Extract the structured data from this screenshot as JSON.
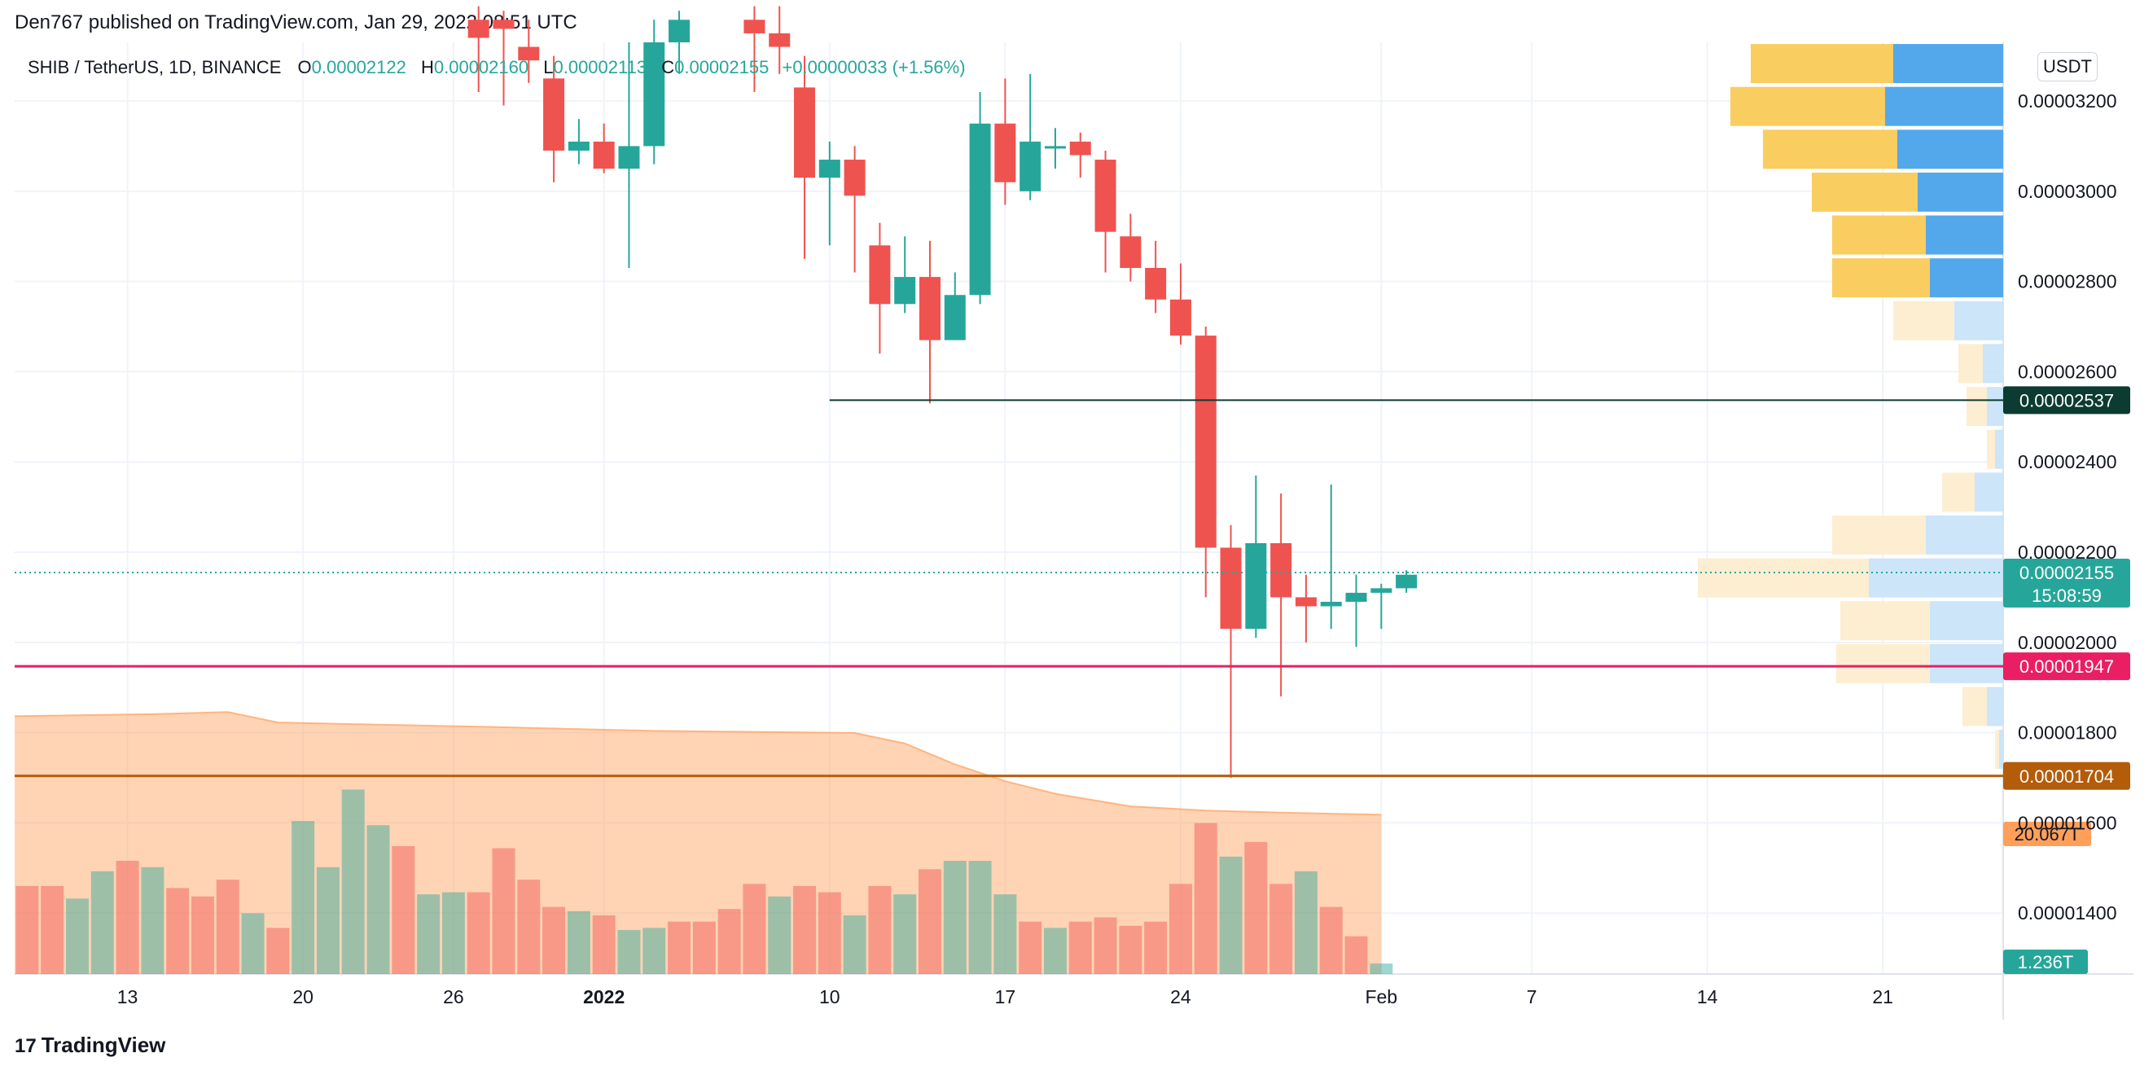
{
  "header": {
    "publisher": "Den767 published on TradingView.com, Jan 29, 2022 08:51 UTC"
  },
  "legend": {
    "symbol": "SHIB / TetherUS, 1D, BINANCE",
    "o_label": "O",
    "o_value": "0.00002122",
    "h_label": "H",
    "h_value": "0.00002160",
    "l_label": "L",
    "l_value": "0.00002113",
    "c_label": "C",
    "c_value": "0.00002155",
    "change": "+0.00000033 (+1.56%)"
  },
  "currency": "USDT",
  "footer": {
    "brand": "TradingView"
  },
  "colors": {
    "up": "#26a69a",
    "down": "#ef5350",
    "hline_dark": "#0c3b31",
    "hline_pink": "#e91e63",
    "hline_brown": "#b35c0a",
    "volume_ma": "#ff9f5a"
  },
  "chart_data": {
    "type": "candlestick",
    "title": "SHIB / TetherUS, 1D, BINANCE",
    "y_ticks": [
      "0.00003200",
      "0.00003000",
      "0.00002800",
      "0.00002600",
      "0.00002400",
      "0.00002200",
      "0.00002000",
      "0.00001800",
      "0.00001600",
      "0.00001400"
    ],
    "y_tick_values": [
      3.2e-05,
      3e-05,
      2.8e-05,
      2.6e-05,
      2.4e-05,
      2.2e-05,
      2e-05,
      1.8e-05,
      1.6e-05,
      1.4e-05
    ],
    "ylim": [
      1.265e-05,
      3.33e-05
    ],
    "x_ticks": [
      {
        "label": "13",
        "day": 0
      },
      {
        "label": "20",
        "day": 7
      },
      {
        "label": "26",
        "day": 13
      },
      {
        "label": "2022",
        "day": 19
      },
      {
        "label": "10",
        "day": 28
      },
      {
        "label": "17",
        "day": 35
      },
      {
        "label": "24",
        "day": 42
      },
      {
        "label": "Feb",
        "day": 50
      },
      {
        "label": "7",
        "day": 56
      },
      {
        "label": "14",
        "day": 63
      },
      {
        "label": "21",
        "day": 70
      }
    ],
    "x_start_day": -4.5,
    "x_end_day": 74.8,
    "candles": [
      {
        "day": 14,
        "o": 3.38e-05,
        "h": 3.41e-05,
        "l": 3.22e-05,
        "c": 3.34e-05
      },
      {
        "day": 15,
        "o": 3.38e-05,
        "h": 3.4e-05,
        "l": 3.19e-05,
        "c": 3.36e-05
      },
      {
        "day": 16,
        "o": 3.32e-05,
        "h": 3.38e-05,
        "l": 3.24e-05,
        "c": 3.29e-05
      },
      {
        "day": 17,
        "o": 3.25e-05,
        "h": 3.3e-05,
        "l": 3.02e-05,
        "c": 3.09e-05
      },
      {
        "day": 18,
        "o": 3.09e-05,
        "h": 3.16e-05,
        "l": 3.06e-05,
        "c": 3.11e-05
      },
      {
        "day": 19,
        "o": 3.11e-05,
        "h": 3.15e-05,
        "l": 3.04e-05,
        "c": 3.05e-05
      },
      {
        "day": 20,
        "o": 3.05e-05,
        "h": 3.33e-05,
        "l": 2.83e-05,
        "c": 3.1e-05
      },
      {
        "day": 21,
        "o": 3.1e-05,
        "h": 3.38e-05,
        "l": 3.06e-05,
        "c": 3.33e-05
      },
      {
        "day": 22,
        "o": 3.33e-05,
        "h": 3.4e-05,
        "l": 3.26e-05,
        "c": 3.38e-05
      },
      {
        "day": 25,
        "o": 3.38e-05,
        "h": 3.41e-05,
        "l": 3.22e-05,
        "c": 3.35e-05
      },
      {
        "day": 26,
        "o": 3.35e-05,
        "h": 3.41e-05,
        "l": 3.26e-05,
        "c": 3.32e-05
      },
      {
        "day": 27,
        "o": 3.23e-05,
        "h": 3.3e-05,
        "l": 2.85e-05,
        "c": 3.03e-05
      },
      {
        "day": 28,
        "o": 3.03e-05,
        "h": 3.11e-05,
        "l": 2.88e-05,
        "c": 3.07e-05
      },
      {
        "day": 29,
        "o": 3.07e-05,
        "h": 3.1e-05,
        "l": 2.82e-05,
        "c": 2.99e-05
      },
      {
        "day": 30,
        "o": 2.88e-05,
        "h": 2.93e-05,
        "l": 2.64e-05,
        "c": 2.75e-05
      },
      {
        "day": 31,
        "o": 2.75e-05,
        "h": 2.9e-05,
        "l": 2.73e-05,
        "c": 2.81e-05
      },
      {
        "day": 32,
        "o": 2.81e-05,
        "h": 2.89e-05,
        "l": 2.53e-05,
        "c": 2.67e-05
      },
      {
        "day": 33,
        "o": 2.67e-05,
        "h": 2.82e-05,
        "l": 2.67e-05,
        "c": 2.77e-05
      },
      {
        "day": 34,
        "o": 2.77e-05,
        "h": 3.22e-05,
        "l": 2.75e-05,
        "c": 3.15e-05
      },
      {
        "day": 35,
        "o": 3.15e-05,
        "h": 3.25e-05,
        "l": 2.97e-05,
        "c": 3.02e-05
      },
      {
        "day": 36,
        "o": 3e-05,
        "h": 3.26e-05,
        "l": 2.98e-05,
        "c": 3.11e-05
      },
      {
        "day": 37,
        "o": 3.1e-05,
        "h": 3.14e-05,
        "l": 3.05e-05,
        "c": 3.1e-05
      },
      {
        "day": 38,
        "o": 3.11e-05,
        "h": 3.13e-05,
        "l": 3.03e-05,
        "c": 3.08e-05
      },
      {
        "day": 39,
        "o": 3.07e-05,
        "h": 3.09e-05,
        "l": 2.82e-05,
        "c": 2.91e-05
      },
      {
        "day": 40,
        "o": 2.9e-05,
        "h": 2.95e-05,
        "l": 2.8e-05,
        "c": 2.83e-05
      },
      {
        "day": 41,
        "o": 2.83e-05,
        "h": 2.89e-05,
        "l": 2.73e-05,
        "c": 2.76e-05
      },
      {
        "day": 42,
        "o": 2.76e-05,
        "h": 2.84e-05,
        "l": 2.66e-05,
        "c": 2.68e-05
      },
      {
        "day": 43,
        "o": 2.68e-05,
        "h": 2.7e-05,
        "l": 2.1e-05,
        "c": 2.21e-05
      },
      {
        "day": 44,
        "o": 2.21e-05,
        "h": 2.26e-05,
        "l": 1.7e-05,
        "c": 2.03e-05
      },
      {
        "day": 45,
        "o": 2.03e-05,
        "h": 2.37e-05,
        "l": 2.01e-05,
        "c": 2.22e-05
      },
      {
        "day": 46,
        "o": 2.22e-05,
        "h": 2.33e-05,
        "l": 1.88e-05,
        "c": 2.1e-05
      },
      {
        "day": 47,
        "o": 2.1e-05,
        "h": 2.15e-05,
        "l": 2e-05,
        "c": 2.08e-05
      },
      {
        "day": 48,
        "o": 2.08e-05,
        "h": 2.35e-05,
        "l": 2.03e-05,
        "c": 2.09e-05
      },
      {
        "day": 49,
        "o": 2.09e-05,
        "h": 2.15e-05,
        "l": 1.99e-05,
        "c": 2.11e-05
      },
      {
        "day": 50,
        "o": 2.11e-05,
        "h": 2.13e-05,
        "l": 2.03e-05,
        "c": 2.12e-05
      },
      {
        "day": 51,
        "o": 2.12e-05,
        "h": 2.16e-05,
        "l": 2.11e-05,
        "c": 2.15e-05
      }
    ],
    "volume": [
      {
        "day": -4,
        "v": 0.42,
        "up": false
      },
      {
        "day": -3,
        "v": 0.42,
        "up": false
      },
      {
        "day": -2,
        "v": 0.36,
        "up": true
      },
      {
        "day": -1,
        "v": 0.49,
        "up": true
      },
      {
        "day": 0,
        "v": 0.54,
        "up": false
      },
      {
        "day": 1,
        "v": 0.51,
        "up": true
      },
      {
        "day": 2,
        "v": 0.41,
        "up": false
      },
      {
        "day": 3,
        "v": 0.37,
        "up": false
      },
      {
        "day": 4,
        "v": 0.45,
        "up": false
      },
      {
        "day": 5,
        "v": 0.29,
        "up": true
      },
      {
        "day": 6,
        "v": 0.22,
        "up": false
      },
      {
        "day": 7,
        "v": 0.73,
        "up": true
      },
      {
        "day": 8,
        "v": 0.51,
        "up": true
      },
      {
        "day": 9,
        "v": 0.88,
        "up": true
      },
      {
        "day": 10,
        "v": 0.71,
        "up": true
      },
      {
        "day": 11,
        "v": 0.61,
        "up": false
      },
      {
        "day": 12,
        "v": 0.38,
        "up": true
      },
      {
        "day": 13,
        "v": 0.39,
        "up": true
      },
      {
        "day": 14,
        "v": 0.39,
        "up": false
      },
      {
        "day": 15,
        "v": 0.6,
        "up": false
      },
      {
        "day": 16,
        "v": 0.45,
        "up": false
      },
      {
        "day": 17,
        "v": 0.32,
        "up": false
      },
      {
        "day": 18,
        "v": 0.3,
        "up": true
      },
      {
        "day": 19,
        "v": 0.28,
        "up": false
      },
      {
        "day": 20,
        "v": 0.21,
        "up": true
      },
      {
        "day": 21,
        "v": 0.22,
        "up": true
      },
      {
        "day": 22,
        "v": 0.25,
        "up": false
      },
      {
        "day": 23,
        "v": 0.25,
        "up": false
      },
      {
        "day": 24,
        "v": 0.31,
        "up": false
      },
      {
        "day": 25,
        "v": 0.43,
        "up": false
      },
      {
        "day": 26,
        "v": 0.37,
        "up": true
      },
      {
        "day": 27,
        "v": 0.42,
        "up": false
      },
      {
        "day": 28,
        "v": 0.39,
        "up": false
      },
      {
        "day": 29,
        "v": 0.28,
        "up": true
      },
      {
        "day": 30,
        "v": 0.42,
        "up": false
      },
      {
        "day": 31,
        "v": 0.38,
        "up": true
      },
      {
        "day": 32,
        "v": 0.5,
        "up": false
      },
      {
        "day": 33,
        "v": 0.54,
        "up": true
      },
      {
        "day": 34,
        "v": 0.54,
        "up": true
      },
      {
        "day": 35,
        "v": 0.38,
        "up": true
      },
      {
        "day": 36,
        "v": 0.25,
        "up": false
      },
      {
        "day": 37,
        "v": 0.22,
        "up": true
      },
      {
        "day": 38,
        "v": 0.25,
        "up": false
      },
      {
        "day": 39,
        "v": 0.27,
        "up": false
      },
      {
        "day": 40,
        "v": 0.23,
        "up": false
      },
      {
        "day": 41,
        "v": 0.25,
        "up": false
      },
      {
        "day": 42,
        "v": 0.43,
        "up": false
      },
      {
        "day": 43,
        "v": 0.72,
        "up": false
      },
      {
        "day": 44,
        "v": 0.56,
        "up": true
      },
      {
        "day": 45,
        "v": 0.63,
        "up": false
      },
      {
        "day": 46,
        "v": 0.43,
        "up": false
      },
      {
        "day": 47,
        "v": 0.49,
        "up": true
      },
      {
        "day": 48,
        "v": 0.32,
        "up": false
      },
      {
        "day": 49,
        "v": 0.18,
        "up": false
      },
      {
        "day": 50,
        "v": 0.05,
        "up": true
      }
    ],
    "volume_ma": [
      {
        "day": -4.5,
        "v": 1.23
      },
      {
        "day": 1,
        "v": 1.24
      },
      {
        "day": 4,
        "v": 1.25
      },
      {
        "day": 6,
        "v": 1.2
      },
      {
        "day": 10,
        "v": 1.19
      },
      {
        "day": 14,
        "v": 1.18
      },
      {
        "day": 21,
        "v": 1.16
      },
      {
        "day": 29,
        "v": 1.15
      },
      {
        "day": 31,
        "v": 1.1
      },
      {
        "day": 33,
        "v": 1.0
      },
      {
        "day": 35,
        "v": 0.92
      },
      {
        "day": 37,
        "v": 0.86
      },
      {
        "day": 40,
        "v": 0.8
      },
      {
        "day": 43,
        "v": 0.78
      },
      {
        "day": 46,
        "v": 0.77
      },
      {
        "day": 48,
        "v": 0.765
      },
      {
        "day": 50,
        "v": 0.76
      }
    ],
    "volume_profile": [
      {
        "p": 3.283e-05,
        "up": 0.35,
        "down": 0.27
      },
      {
        "p": 3.188e-05,
        "up": 0.38,
        "down": 0.29
      },
      {
        "p": 3.093e-05,
        "up": 0.33,
        "down": 0.26
      },
      {
        "p": 2.998e-05,
        "up": 0.26,
        "down": 0.21
      },
      {
        "p": 2.903e-05,
        "up": 0.23,
        "down": 0.19
      },
      {
        "p": 2.808e-05,
        "up": 0.24,
        "down": 0.18
      },
      {
        "p": 2.713e-05,
        "up": 0.15,
        "down": 0.12
      },
      {
        "p": 2.618e-05,
        "up": 0.06,
        "down": 0.05
      },
      {
        "p": 2.523e-05,
        "up": 0.05,
        "down": 0.04
      },
      {
        "p": 2.428e-05,
        "up": 0.02,
        "down": 0.02
      },
      {
        "p": 2.333e-05,
        "up": 0.08,
        "down": 0.07
      },
      {
        "p": 2.238e-05,
        "up": 0.23,
        "down": 0.19
      },
      {
        "p": 2.143e-05,
        "up": 0.42,
        "down": 0.33
      },
      {
        "p": 2.048e-05,
        "up": 0.22,
        "down": 0.18
      },
      {
        "p": 1.953e-05,
        "up": 0.23,
        "down": 0.18
      },
      {
        "p": 1.858e-05,
        "up": 0.06,
        "down": 0.04
      },
      {
        "p": 1.763e-05,
        "up": 0.01,
        "down": 0.01
      }
    ],
    "horizontal_lines": [
      {
        "price": 2.537e-05,
        "label": "0.00002537",
        "color": "#0c3b31",
        "from_day": 28
      },
      {
        "price": 1.947e-05,
        "label": "0.00001947",
        "color": "#e91e63",
        "from_day": null
      },
      {
        "price": 1.704e-05,
        "label": "0.00001704",
        "color": "#b35c0a",
        "from_day": null
      }
    ],
    "current_price": {
      "price": 2.155e-05,
      "label": "0.00002155",
      "countdown": "15:08:59"
    },
    "volume_labels": {
      "ma": "20.067T",
      "current": "1.236T"
    }
  }
}
